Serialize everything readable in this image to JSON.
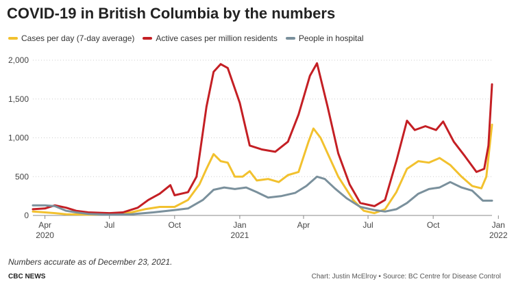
{
  "header": {
    "title": "COVID-19 in British Columbia by the numbers"
  },
  "footer": {
    "note": "Numbers accurate as of December 23, 2021.",
    "brand": "CBC NEWS",
    "credit": "Chart: Justin McElroy • Source: BC Centre for Disease Control"
  },
  "chart_data": {
    "type": "line",
    "title": "COVID-19 in British Columbia by the numbers",
    "xlabel": "",
    "ylabel": "",
    "ylim": [
      0,
      2000
    ],
    "yticks": [
      0,
      500,
      1000,
      1500,
      2000
    ],
    "ytick_labels": [
      "0",
      "500",
      "1,000",
      "1,500",
      "2,000"
    ],
    "xlim": [
      "2020-03-15",
      "2021-12-23"
    ],
    "xticks": [
      {
        "date": "2020-04-01",
        "label": "Apr",
        "sublabel": "2020"
      },
      {
        "date": "2020-07-01",
        "label": "Jul",
        "sublabel": ""
      },
      {
        "date": "2020-10-01",
        "label": "Oct",
        "sublabel": ""
      },
      {
        "date": "2021-01-01",
        "label": "Jan",
        "sublabel": "2021"
      },
      {
        "date": "2021-04-01",
        "label": "Apr",
        "sublabel": ""
      },
      {
        "date": "2021-07-01",
        "label": "Jul",
        "sublabel": ""
      },
      {
        "date": "2021-10-01",
        "label": "Oct",
        "sublabel": ""
      },
      {
        "date": "2022-01-01",
        "label": "Jan",
        "sublabel": "2022"
      }
    ],
    "grid": "horizontal dotted",
    "legend_position": "top-left",
    "series": [
      {
        "name": "Cases per day (7-day average)",
        "color": "#f2c12e",
        "points": [
          [
            "2020-03-15",
            50
          ],
          [
            "2020-04-01",
            40
          ],
          [
            "2020-04-15",
            30
          ],
          [
            "2020-05-01",
            15
          ],
          [
            "2020-06-01",
            10
          ],
          [
            "2020-07-01",
            15
          ],
          [
            "2020-08-01",
            40
          ],
          [
            "2020-08-20",
            80
          ],
          [
            "2020-09-10",
            110
          ],
          [
            "2020-10-01",
            110
          ],
          [
            "2020-10-20",
            200
          ],
          [
            "2020-11-05",
            400
          ],
          [
            "2020-11-15",
            600
          ],
          [
            "2020-11-25",
            790
          ],
          [
            "2020-12-05",
            700
          ],
          [
            "2020-12-15",
            680
          ],
          [
            "2020-12-25",
            500
          ],
          [
            "2021-01-05",
            500
          ],
          [
            "2021-01-15",
            570
          ],
          [
            "2021-01-25",
            450
          ],
          [
            "2021-02-10",
            470
          ],
          [
            "2021-02-25",
            430
          ],
          [
            "2021-03-10",
            520
          ],
          [
            "2021-03-25",
            560
          ],
          [
            "2021-04-08",
            950
          ],
          [
            "2021-04-15",
            1120
          ],
          [
            "2021-04-25",
            1000
          ],
          [
            "2021-05-05",
            800
          ],
          [
            "2021-05-20",
            500
          ],
          [
            "2021-06-10",
            200
          ],
          [
            "2021-06-25",
            60
          ],
          [
            "2021-07-10",
            30
          ],
          [
            "2021-07-25",
            80
          ],
          [
            "2021-08-10",
            300
          ],
          [
            "2021-08-25",
            600
          ],
          [
            "2021-09-10",
            700
          ],
          [
            "2021-09-25",
            680
          ],
          [
            "2021-10-10",
            740
          ],
          [
            "2021-10-25",
            650
          ],
          [
            "2021-11-10",
            500
          ],
          [
            "2021-11-25",
            380
          ],
          [
            "2021-12-08",
            350
          ],
          [
            "2021-12-15",
            500
          ],
          [
            "2021-12-23",
            1170
          ]
        ]
      },
      {
        "name": "Active cases per million residents",
        "color": "#c41f24",
        "points": [
          [
            "2020-03-15",
            80
          ],
          [
            "2020-04-01",
            90
          ],
          [
            "2020-04-15",
            130
          ],
          [
            "2020-05-01",
            100
          ],
          [
            "2020-05-15",
            60
          ],
          [
            "2020-06-01",
            40
          ],
          [
            "2020-07-01",
            30
          ],
          [
            "2020-07-20",
            40
          ],
          [
            "2020-08-10",
            100
          ],
          [
            "2020-08-25",
            200
          ],
          [
            "2020-09-10",
            280
          ],
          [
            "2020-09-25",
            390
          ],
          [
            "2020-10-01",
            260
          ],
          [
            "2020-10-20",
            300
          ],
          [
            "2020-11-01",
            500
          ],
          [
            "2020-11-15",
            1400
          ],
          [
            "2020-11-25",
            1850
          ],
          [
            "2020-12-05",
            1950
          ],
          [
            "2020-12-15",
            1900
          ],
          [
            "2021-01-01",
            1450
          ],
          [
            "2021-01-15",
            900
          ],
          [
            "2021-02-01",
            850
          ],
          [
            "2021-02-20",
            820
          ],
          [
            "2021-03-10",
            950
          ],
          [
            "2021-03-25",
            1300
          ],
          [
            "2021-04-10",
            1800
          ],
          [
            "2021-04-20",
            1960
          ],
          [
            "2021-05-05",
            1400
          ],
          [
            "2021-05-20",
            800
          ],
          [
            "2021-06-05",
            400
          ],
          [
            "2021-06-20",
            160
          ],
          [
            "2021-07-10",
            120
          ],
          [
            "2021-07-25",
            200
          ],
          [
            "2021-08-10",
            700
          ],
          [
            "2021-08-25",
            1220
          ],
          [
            "2021-09-05",
            1100
          ],
          [
            "2021-09-20",
            1150
          ],
          [
            "2021-10-05",
            1100
          ],
          [
            "2021-10-15",
            1210
          ],
          [
            "2021-10-30",
            950
          ],
          [
            "2021-11-15",
            760
          ],
          [
            "2021-12-01",
            560
          ],
          [
            "2021-12-12",
            600
          ],
          [
            "2021-12-18",
            900
          ],
          [
            "2021-12-23",
            1690
          ]
        ]
      },
      {
        "name": "People in hospital",
        "color": "#7a909c",
        "points": [
          [
            "2020-03-15",
            130
          ],
          [
            "2020-04-01",
            130
          ],
          [
            "2020-04-15",
            120
          ],
          [
            "2020-05-01",
            60
          ],
          [
            "2020-05-15",
            40
          ],
          [
            "2020-06-01",
            20
          ],
          [
            "2020-07-01",
            10
          ],
          [
            "2020-08-01",
            15
          ],
          [
            "2020-09-01",
            40
          ],
          [
            "2020-10-01",
            70
          ],
          [
            "2020-10-20",
            90
          ],
          [
            "2020-11-10",
            200
          ],
          [
            "2020-11-25",
            330
          ],
          [
            "2020-12-10",
            360
          ],
          [
            "2020-12-25",
            340
          ],
          [
            "2021-01-10",
            360
          ],
          [
            "2021-01-25",
            300
          ],
          [
            "2021-02-10",
            230
          ],
          [
            "2021-03-01",
            250
          ],
          [
            "2021-03-20",
            290
          ],
          [
            "2021-04-05",
            380
          ],
          [
            "2021-04-20",
            500
          ],
          [
            "2021-05-01",
            470
          ],
          [
            "2021-05-15",
            350
          ],
          [
            "2021-06-01",
            220
          ],
          [
            "2021-06-20",
            110
          ],
          [
            "2021-07-10",
            70
          ],
          [
            "2021-07-25",
            50
          ],
          [
            "2021-08-10",
            80
          ],
          [
            "2021-08-25",
            160
          ],
          [
            "2021-09-10",
            280
          ],
          [
            "2021-09-25",
            340
          ],
          [
            "2021-10-10",
            360
          ],
          [
            "2021-10-25",
            430
          ],
          [
            "2021-11-10",
            360
          ],
          [
            "2021-11-25",
            320
          ],
          [
            "2021-12-10",
            190
          ],
          [
            "2021-12-23",
            190
          ]
        ]
      }
    ]
  }
}
